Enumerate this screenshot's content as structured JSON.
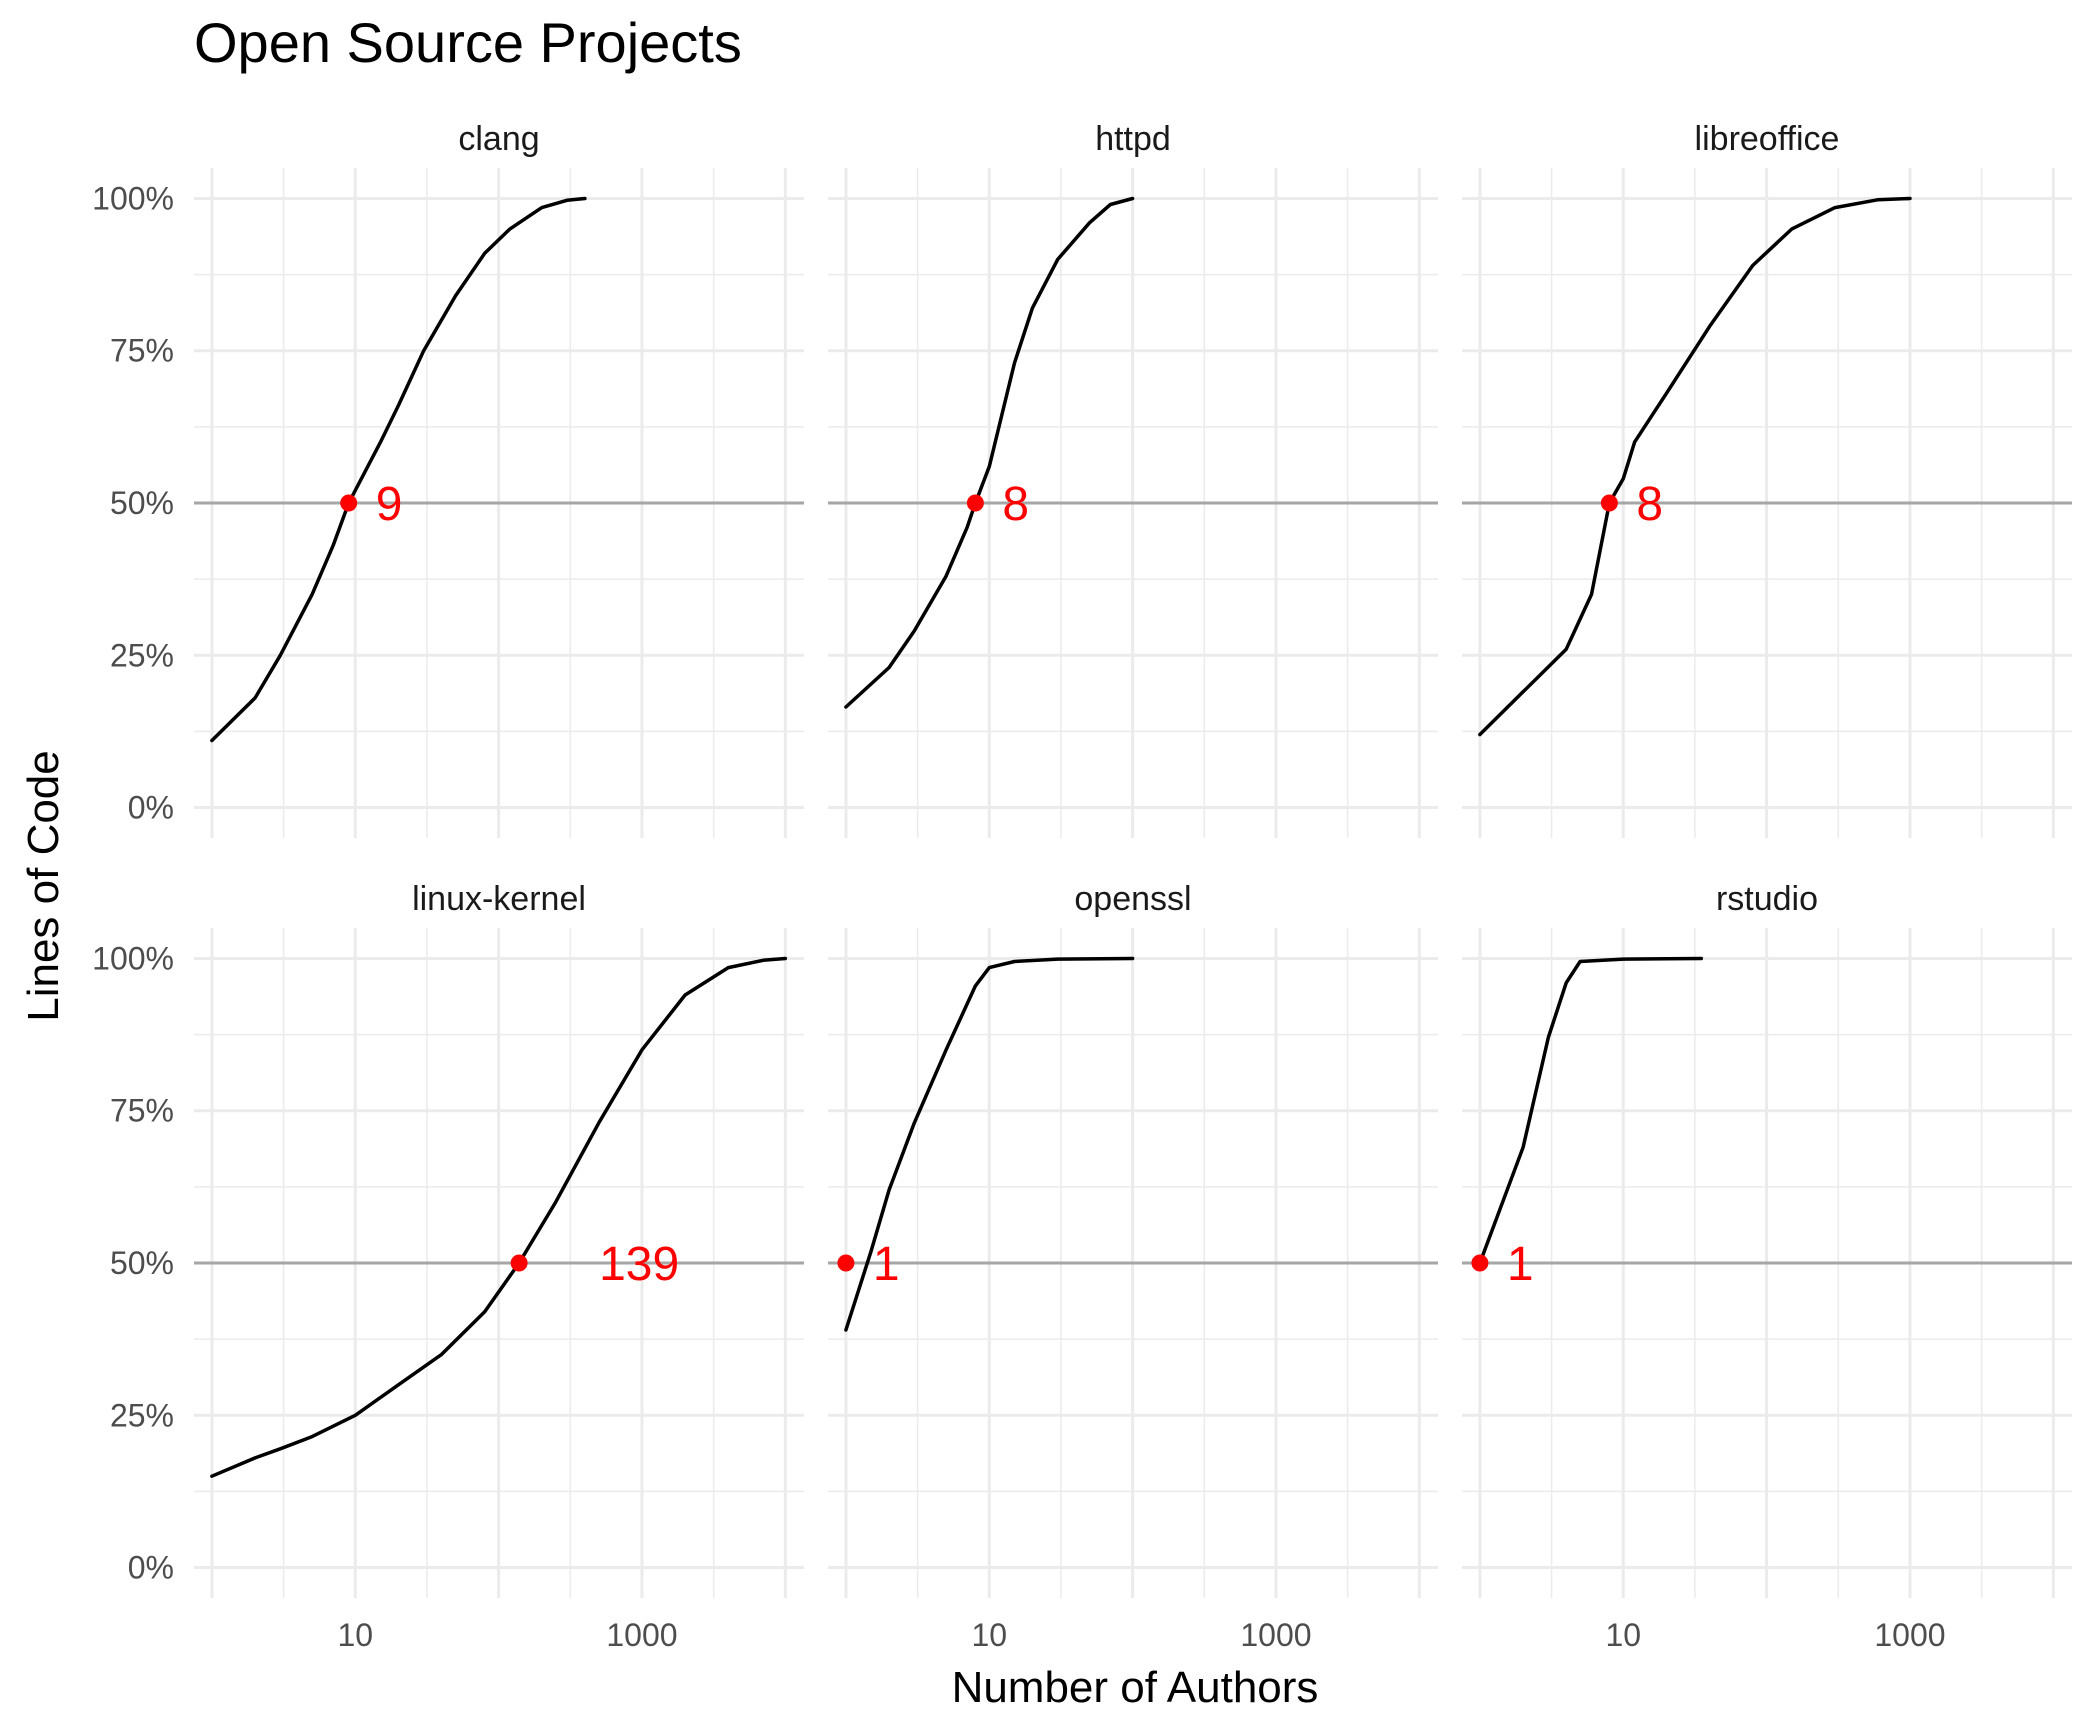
{
  "chart_data": {
    "type": "line",
    "title": "Open Source Projects",
    "xlabel": "Number of Authors",
    "ylabel": "Lines of Code",
    "x_scale": "log10",
    "xlim": [
      0.75,
      13500
    ],
    "ylim": [
      -0.05,
      1.05
    ],
    "x_ticks": [
      10,
      1000
    ],
    "x_tick_labels": [
      "10",
      "1000"
    ],
    "y_ticks": [
      0,
      0.25,
      0.5,
      0.75,
      1.0
    ],
    "y_tick_labels": [
      "0%",
      "25%",
      "50%",
      "75%",
      "100%"
    ],
    "reference_line_y": 0.5,
    "grid": true,
    "colors": {
      "line": "#000000",
      "median_point": "#ff0000",
      "reference_line": "#a6a6a6",
      "grid": "#ebebeb"
    },
    "panels": [
      {
        "name": "clang",
        "median_authors": 9,
        "label": "9",
        "series": [
          {
            "x": 1,
            "y": 0.11
          },
          {
            "x": 2,
            "y": 0.18
          },
          {
            "x": 3,
            "y": 0.25
          },
          {
            "x": 5,
            "y": 0.35
          },
          {
            "x": 7,
            "y": 0.43
          },
          {
            "x": 9,
            "y": 0.5
          },
          {
            "x": 15,
            "y": 0.6
          },
          {
            "x": 20,
            "y": 0.66
          },
          {
            "x": 30,
            "y": 0.75
          },
          {
            "x": 50,
            "y": 0.84
          },
          {
            "x": 80,
            "y": 0.91
          },
          {
            "x": 120,
            "y": 0.95
          },
          {
            "x": 200,
            "y": 0.985
          },
          {
            "x": 300,
            "y": 0.997
          },
          {
            "x": 400,
            "y": 1.0
          }
        ]
      },
      {
        "name": "httpd",
        "median_authors": 8,
        "label": "8",
        "series": [
          {
            "x": 1,
            "y": 0.165
          },
          {
            "x": 2,
            "y": 0.23
          },
          {
            "x": 3,
            "y": 0.29
          },
          {
            "x": 5,
            "y": 0.38
          },
          {
            "x": 7,
            "y": 0.46
          },
          {
            "x": 8,
            "y": 0.5
          },
          {
            "x": 10,
            "y": 0.56
          },
          {
            "x": 15,
            "y": 0.73
          },
          {
            "x": 20,
            "y": 0.82
          },
          {
            "x": 30,
            "y": 0.9
          },
          {
            "x": 50,
            "y": 0.96
          },
          {
            "x": 70,
            "y": 0.99
          },
          {
            "x": 100,
            "y": 1.0
          }
        ]
      },
      {
        "name": "libreoffice",
        "median_authors": 8,
        "label": "8",
        "series": [
          {
            "x": 1,
            "y": 0.12
          },
          {
            "x": 2,
            "y": 0.19
          },
          {
            "x": 4,
            "y": 0.26
          },
          {
            "x": 6,
            "y": 0.35
          },
          {
            "x": 8,
            "y": 0.5
          },
          {
            "x": 10,
            "y": 0.54
          },
          {
            "x": 12,
            "y": 0.6
          },
          {
            "x": 20,
            "y": 0.68
          },
          {
            "x": 40,
            "y": 0.79
          },
          {
            "x": 80,
            "y": 0.89
          },
          {
            "x": 150,
            "y": 0.95
          },
          {
            "x": 300,
            "y": 0.985
          },
          {
            "x": 600,
            "y": 0.998
          },
          {
            "x": 1000,
            "y": 1.0
          }
        ]
      },
      {
        "name": "linux-kernel",
        "median_authors": 139,
        "label": "139",
        "series": [
          {
            "x": 1,
            "y": 0.15
          },
          {
            "x": 2,
            "y": 0.18
          },
          {
            "x": 3,
            "y": 0.195
          },
          {
            "x": 5,
            "y": 0.215
          },
          {
            "x": 10,
            "y": 0.25
          },
          {
            "x": 20,
            "y": 0.3
          },
          {
            "x": 40,
            "y": 0.35
          },
          {
            "x": 80,
            "y": 0.42
          },
          {
            "x": 139,
            "y": 0.5
          },
          {
            "x": 250,
            "y": 0.6
          },
          {
            "x": 500,
            "y": 0.73
          },
          {
            "x": 1000,
            "y": 0.85
          },
          {
            "x": 2000,
            "y": 0.94
          },
          {
            "x": 4000,
            "y": 0.985
          },
          {
            "x": 7000,
            "y": 0.997
          },
          {
            "x": 10000,
            "y": 1.0
          }
        ]
      },
      {
        "name": "openssl",
        "median_authors": 1,
        "label": "1",
        "series": [
          {
            "x": 1,
            "y": 0.39
          },
          {
            "x": 1.5,
            "y": 0.52
          },
          {
            "x": 2,
            "y": 0.62
          },
          {
            "x": 3,
            "y": 0.73
          },
          {
            "x": 5,
            "y": 0.85
          },
          {
            "x": 8,
            "y": 0.955
          },
          {
            "x": 10,
            "y": 0.985
          },
          {
            "x": 15,
            "y": 0.995
          },
          {
            "x": 30,
            "y": 0.999
          },
          {
            "x": 100,
            "y": 1.0
          }
        ]
      },
      {
        "name": "rstudio",
        "median_authors": 1,
        "label": "1",
        "series": [
          {
            "x": 1,
            "y": 0.5
          },
          {
            "x": 2,
            "y": 0.69
          },
          {
            "x": 3,
            "y": 0.87
          },
          {
            "x": 4,
            "y": 0.96
          },
          {
            "x": 5,
            "y": 0.995
          },
          {
            "x": 10,
            "y": 0.999
          },
          {
            "x": 35,
            "y": 1.0
          }
        ]
      }
    ]
  }
}
